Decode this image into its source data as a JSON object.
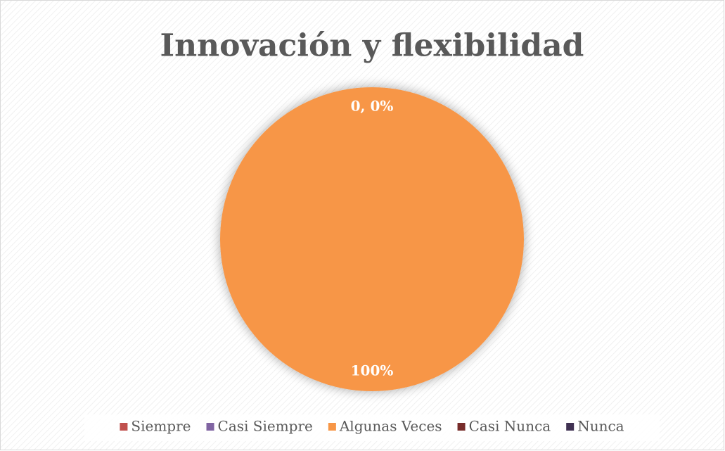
{
  "chart_data": {
    "type": "pie",
    "title": "Innovación y flexibilidad",
    "categories": [
      "Siempre",
      "Casi Siempre",
      "Algunas Veces",
      "Casi Nunca",
      "Nunca"
    ],
    "values": [
      0,
      0,
      100,
      0,
      0
    ],
    "value_labels": [
      "0, 0%",
      null,
      "100%",
      null,
      null
    ],
    "colors": [
      "#c0504d",
      "#8064a2",
      "#f79646",
      "#772c2a",
      "#403152"
    ],
    "legend": "bottom"
  }
}
